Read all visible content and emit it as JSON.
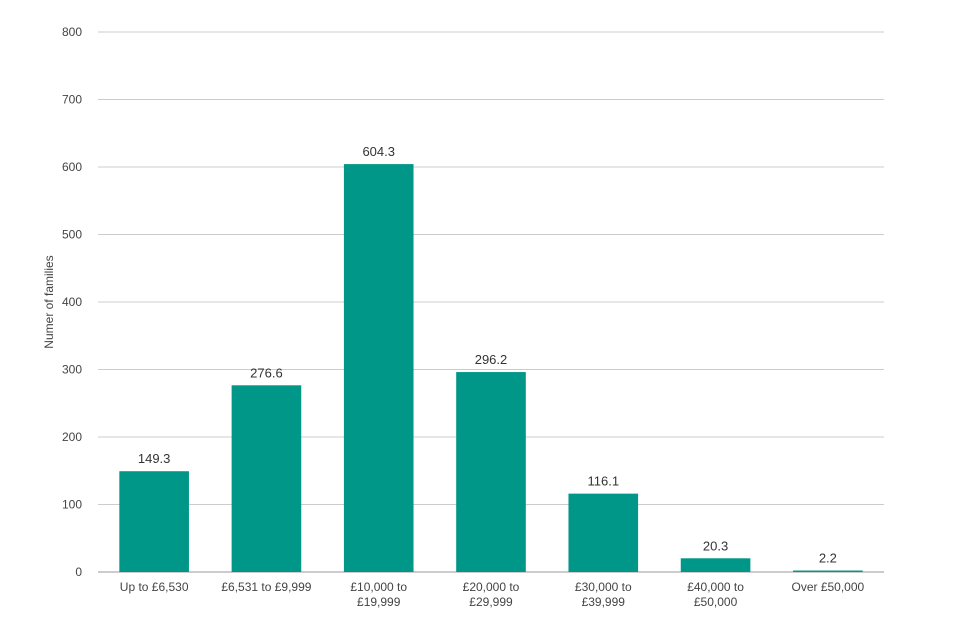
{
  "colors": {
    "bar": "#009688",
    "grid": "#cccccc",
    "text": "#444444"
  },
  "chart_data": {
    "type": "bar",
    "categories": [
      [
        "Up to £6,530"
      ],
      [
        "£6,531 to £9,999"
      ],
      [
        "£10,000 to",
        "£19,999"
      ],
      [
        "£20,000 to",
        "£29,999"
      ],
      [
        "£30,000 to",
        "£39,999"
      ],
      [
        "£40,000 to",
        "£50,000"
      ],
      [
        "Over £50,000"
      ]
    ],
    "values": [
      149.3,
      276.6,
      604.3,
      296.2,
      116.1,
      20.3,
      2.2
    ],
    "data_labels": [
      "149.3",
      "276.6",
      "604.3",
      "296.2",
      "116.1",
      "20.3",
      "2.2"
    ],
    "ylabel": "Numer of families",
    "xlabel": "",
    "ylim": [
      0,
      800
    ],
    "yticks": [
      0,
      100,
      200,
      300,
      400,
      500,
      600,
      700,
      800
    ],
    "grid": true,
    "legend": "none"
  }
}
